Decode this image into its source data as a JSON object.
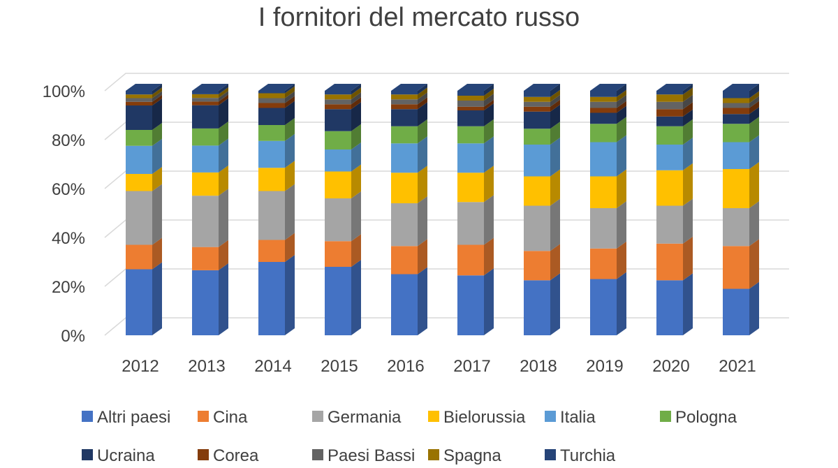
{
  "chart_data": {
    "type": "bar",
    "stacked": true,
    "percent_stacked": true,
    "style": "3d-column",
    "title": "I fornitori del mercato russo",
    "xlabel": "",
    "ylabel": "",
    "categories": [
      "2012",
      "2013",
      "2014",
      "2015",
      "2016",
      "2017",
      "2018",
      "2019",
      "2020",
      "2021"
    ],
    "y_ticks": [
      "0%",
      "20%",
      "40%",
      "60%",
      "80%",
      "100%"
    ],
    "ylim": [
      0,
      100
    ],
    "grid": true,
    "legend_position": "bottom",
    "series": [
      {
        "name": "Altri paesi",
        "color": "#4472C4",
        "values": [
          27,
          26.6,
          30,
          28,
          25,
          24.5,
          22.5,
          23,
          22.5,
          19
        ]
      },
      {
        "name": "Cina",
        "color": "#ED7D31",
        "values": [
          10,
          9.5,
          9,
          10.5,
          11.5,
          12.5,
          12,
          12.5,
          15,
          17.5
        ]
      },
      {
        "name": "Germania",
        "color": "#A5A5A5",
        "values": [
          22,
          21,
          20,
          17.5,
          17.5,
          17.5,
          18.5,
          16.5,
          15.5,
          15.5
        ]
      },
      {
        "name": "Bielorussia",
        "color": "#FFC000",
        "values": [
          7,
          9.5,
          9.5,
          11,
          12.5,
          12,
          12,
          13,
          14.5,
          16
        ]
      },
      {
        "name": "Italia",
        "color": "#5B9BD5",
        "values": [
          11.5,
          11,
          11,
          9,
          12,
          12,
          13,
          14,
          10.5,
          11
        ]
      },
      {
        "name": "Pologna",
        "color": "#70AD47",
        "values": [
          6.5,
          7,
          6.5,
          7.5,
          7,
          7,
          6.5,
          7.5,
          7.5,
          7.5
        ]
      },
      {
        "name": "Ucraina",
        "color": "#203864",
        "values": [
          10,
          9.5,
          7,
          9,
          7,
          6.5,
          7,
          4.5,
          4,
          4
        ]
      },
      {
        "name": "Corea",
        "color": "#843C0C",
        "values": [
          1.5,
          1.5,
          2,
          2,
          2,
          1.5,
          2,
          2,
          3,
          2.5
        ]
      },
      {
        "name": "Paesi Bassi",
        "color": "#636363",
        "values": [
          1.5,
          1.5,
          2,
          2,
          2,
          2.5,
          2,
          2.5,
          3,
          2
        ]
      },
      {
        "name": "Spagna",
        "color": "#997300",
        "values": [
          1.5,
          1.5,
          2,
          2,
          2,
          2,
          2,
          2,
          3,
          2
        ]
      },
      {
        "name": "Turchia",
        "color": "#264478",
        "values": [
          1.5,
          1.4,
          1,
          1.5,
          1.5,
          2,
          2.5,
          2.5,
          1.5,
          3
        ]
      }
    ]
  }
}
